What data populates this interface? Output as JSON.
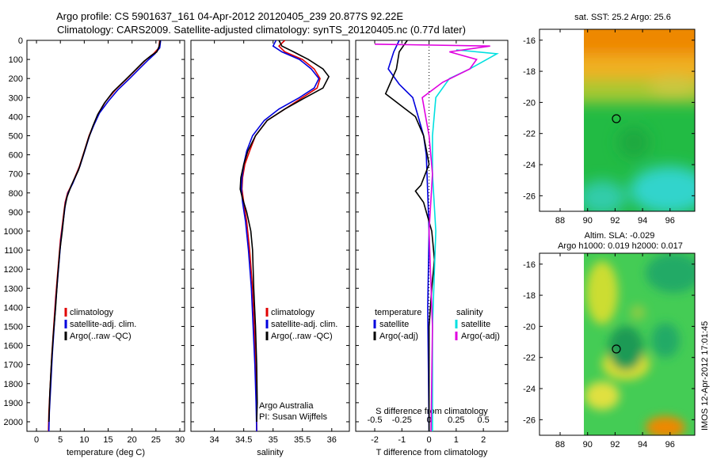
{
  "title": {
    "line1": "Argo profile: CS 5901637_161 04-Apr-2012 20120405_239 20.877S 92.22E",
    "line2": "Climatology: CARS2009. Satellite-adjusted climatology: synTS_20120405.nc (0.77d later)"
  },
  "colors": {
    "climatology": "#e00000",
    "satellite": "#0000dd",
    "argo": "#000000",
    "salinity_sat": "#00e0e0",
    "salinity_argo": "#e000e0"
  },
  "chart_data": [
    {
      "type": "line",
      "panel": "temperature",
      "xlabel": "temperature (deg C)",
      "xlim": [
        -2,
        31
      ],
      "xticks": [
        0,
        5,
        10,
        15,
        20,
        25,
        30
      ],
      "ylim": [
        2050,
        0
      ],
      "yticks": [
        0,
        100,
        200,
        300,
        400,
        500,
        600,
        700,
        800,
        900,
        1000,
        1100,
        1200,
        1300,
        1400,
        1500,
        1600,
        1700,
        1800,
        1900,
        2000
      ],
      "legend": [
        "climatology",
        "satellite-adj. clim.",
        "Argo(..raw -QC)"
      ],
      "series": [
        {
          "name": "climatology",
          "color": "#e00000",
          "points": [
            [
              25.8,
              0
            ],
            [
              25.6,
              40
            ],
            [
              24.5,
              70
            ],
            [
              23,
              100
            ],
            [
              21,
              150
            ],
            [
              19,
              200
            ],
            [
              16.5,
              260
            ],
            [
              14.5,
              320
            ],
            [
              13,
              380
            ],
            [
              12,
              440
            ],
            [
              11,
              500
            ],
            [
              10,
              580
            ],
            [
              9,
              660
            ],
            [
              7.5,
              750
            ],
            [
              6.5,
              800
            ],
            [
              6,
              850
            ],
            [
              5.5,
              950
            ],
            [
              5,
              1050
            ],
            [
              4.5,
              1200
            ],
            [
              4,
              1350
            ],
            [
              3.6,
              1500
            ],
            [
              3.2,
              1650
            ],
            [
              2.9,
              1800
            ],
            [
              2.6,
              1950
            ],
            [
              2.5,
              2050
            ]
          ]
        },
        {
          "name": "satellite-adj. clim.",
          "color": "#0000dd",
          "points": [
            [
              26,
              0
            ],
            [
              25.8,
              40
            ],
            [
              24.8,
              70
            ],
            [
              23.5,
              100
            ],
            [
              21.5,
              150
            ],
            [
              19.5,
              200
            ],
            [
              17,
              260
            ],
            [
              15,
              320
            ],
            [
              13.2,
              380
            ],
            [
              12.1,
              440
            ],
            [
              11.1,
              500
            ],
            [
              10.1,
              580
            ],
            [
              9.1,
              660
            ],
            [
              7.6,
              750
            ],
            [
              6.6,
              800
            ],
            [
              6.1,
              850
            ],
            [
              5.6,
              950
            ],
            [
              5.1,
              1050
            ],
            [
              4.6,
              1200
            ],
            [
              4.1,
              1350
            ],
            [
              3.7,
              1500
            ],
            [
              3.3,
              1650
            ],
            [
              3,
              1800
            ],
            [
              2.7,
              1950
            ],
            [
              2.6,
              2050
            ]
          ]
        },
        {
          "name": "Argo(..raw -QC)",
          "color": "#000000",
          "points": [
            [
              25.9,
              0
            ],
            [
              25.7,
              30
            ],
            [
              25.2,
              60
            ],
            [
              24,
              80
            ],
            [
              22.5,
              110
            ],
            [
              20.5,
              160
            ],
            [
              18.5,
              210
            ],
            [
              16,
              270
            ],
            [
              14.2,
              330
            ],
            [
              12.8,
              390
            ],
            [
              11.8,
              450
            ],
            [
              10.8,
              520
            ],
            [
              9.8,
              600
            ],
            [
              8.8,
              680
            ],
            [
              7.3,
              760
            ],
            [
              6.4,
              820
            ],
            [
              5.9,
              880
            ],
            [
              5.4,
              1000
            ],
            [
              4.9,
              1100
            ],
            [
              4.4,
              1250
            ],
            [
              4,
              1400
            ],
            [
              3.5,
              1550
            ],
            [
              3.1,
              1700
            ],
            [
              2.8,
              1850
            ],
            [
              2.6,
              2000
            ]
          ]
        }
      ]
    },
    {
      "type": "line",
      "panel": "salinity",
      "xlabel": "salinity",
      "xlim": [
        33.6,
        36.3
      ],
      "xticks": [
        34,
        34.5,
        35,
        35.5,
        36
      ],
      "legend": [
        "climatology",
        "satellite-adj. clim.",
        "Argo(..raw -QC)"
      ],
      "annotation": [
        "Argo Australia",
        "PI: Susan Wijffels"
      ],
      "series": [
        {
          "name": "climatology",
          "color": "#e00000",
          "points": [
            [
              35.2,
              0
            ],
            [
              35.1,
              30
            ],
            [
              35.2,
              60
            ],
            [
              35.5,
              100
            ],
            [
              35.7,
              150
            ],
            [
              35.8,
              200
            ],
            [
              35.75,
              250
            ],
            [
              35.5,
              300
            ],
            [
              35.2,
              360
            ],
            [
              34.9,
              420
            ],
            [
              34.7,
              500
            ],
            [
              34.6,
              580
            ],
            [
              34.52,
              650
            ],
            [
              34.48,
              720
            ],
            [
              34.47,
              780
            ],
            [
              34.5,
              850
            ],
            [
              34.55,
              950
            ],
            [
              34.6,
              1100
            ],
            [
              34.65,
              1300
            ],
            [
              34.68,
              1500
            ],
            [
              34.7,
              1700
            ],
            [
              34.72,
              1900
            ],
            [
              34.72,
              2050
            ]
          ]
        },
        {
          "name": "satellite-adj. clim.",
          "color": "#0000dd",
          "points": [
            [
              35.05,
              0
            ],
            [
              35,
              30
            ],
            [
              35.15,
              60
            ],
            [
              35.45,
              100
            ],
            [
              35.65,
              150
            ],
            [
              35.78,
              200
            ],
            [
              35.7,
              250
            ],
            [
              35.45,
              300
            ],
            [
              35.1,
              360
            ],
            [
              34.85,
              420
            ],
            [
              34.65,
              500
            ],
            [
              34.55,
              580
            ],
            [
              34.5,
              650
            ],
            [
              34.47,
              720
            ],
            [
              34.46,
              780
            ],
            [
              34.48,
              850
            ],
            [
              34.53,
              950
            ],
            [
              34.58,
              1100
            ],
            [
              34.63,
              1300
            ],
            [
              34.66,
              1500
            ],
            [
              34.69,
              1700
            ],
            [
              34.71,
              1900
            ],
            [
              34.72,
              2050
            ]
          ]
        },
        {
          "name": "Argo(..raw -QC)",
          "color": "#000000",
          "points": [
            [
              35.1,
              0
            ],
            [
              35.15,
              30
            ],
            [
              35.35,
              60
            ],
            [
              35.6,
              100
            ],
            [
              35.85,
              150
            ],
            [
              35.95,
              190
            ],
            [
              35.85,
              250
            ],
            [
              35.55,
              300
            ],
            [
              35.2,
              360
            ],
            [
              34.9,
              420
            ],
            [
              34.7,
              500
            ],
            [
              34.57,
              580
            ],
            [
              34.5,
              650
            ],
            [
              34.45,
              720
            ],
            [
              34.44,
              780
            ],
            [
              34.48,
              830
            ],
            [
              34.55,
              900
            ],
            [
              34.62,
              1000
            ],
            [
              34.65,
              1100
            ],
            [
              34.67,
              1300
            ],
            [
              34.7,
              1500
            ],
            [
              34.72,
              1700
            ],
            [
              34.73,
              1900
            ],
            [
              34.72,
              2000
            ]
          ]
        }
      ]
    },
    {
      "type": "line",
      "panel": "difference",
      "xlabel": "T difference from climatology",
      "xlabel2": "S difference from climatology",
      "xlim": [
        -2.7,
        2.9
      ],
      "xticks": [
        -2,
        -1,
        0,
        1,
        2
      ],
      "xticks2": [
        -0.5,
        -0.25,
        0,
        0.25,
        0.5
      ],
      "xticks2_labels": [
        "-0.5",
        "-0.25",
        "0",
        "0.25",
        "0.5"
      ],
      "legend_groups": [
        {
          "header": "temperature",
          "items": [
            "satellite",
            "Argo(-adj)"
          ]
        },
        {
          "header": "salinity",
          "items": [
            "satellite",
            "Argo(-adj)"
          ]
        }
      ],
      "series": [
        {
          "name": "satellite",
          "group": "temperature",
          "color": "#0000dd",
          "points": [
            [
              -1.1,
              0
            ],
            [
              -1.3,
              60
            ],
            [
              -1.5,
              150
            ],
            [
              -1.1,
              230
            ],
            [
              -0.6,
              300
            ],
            [
              -0.4,
              400
            ],
            [
              -0.2,
              500
            ],
            [
              -0.1,
              600
            ],
            [
              -0.05,
              800
            ],
            [
              0,
              1000
            ],
            [
              -0.05,
              1400
            ],
            [
              0,
              2050
            ]
          ]
        },
        {
          "name": "Argo(-adj)",
          "group": "temperature",
          "color": "#000000",
          "points": [
            [
              -0.8,
              0
            ],
            [
              -1.1,
              60
            ],
            [
              -1.2,
              150
            ],
            [
              -1.6,
              280
            ],
            [
              -0.5,
              400
            ],
            [
              -0.2,
              500
            ],
            [
              0,
              650
            ],
            [
              -0.3,
              760
            ],
            [
              -0.5,
              790
            ],
            [
              -0.2,
              850
            ],
            [
              0.1,
              1000
            ],
            [
              0.2,
              1150
            ],
            [
              0.1,
              1300
            ],
            [
              0,
              1500
            ],
            [
              0,
              2050
            ]
          ]
        },
        {
          "name": "satellite",
          "group": "salinity",
          "color": "#00e0e0",
          "points": [
            [
              0.4,
              50
            ],
            [
              1.0,
              70
            ],
            [
              0.6,
              150
            ],
            [
              0.3,
              200
            ],
            [
              0.1,
              300
            ],
            [
              0.05,
              500
            ],
            [
              0.05,
              700
            ],
            [
              0.1,
              1000
            ],
            [
              0.05,
              1500
            ],
            [
              0.05,
              2050
            ]
          ]
        },
        {
          "name": "Argo(-adj)",
          "group": "salinity",
          "color": "#e000e0",
          "points": [
            [
              -0.8,
              20
            ],
            [
              0.9,
              30
            ],
            [
              0.3,
              60
            ],
            [
              0.7,
              100
            ],
            [
              0.6,
              150
            ],
            [
              0.2,
              220
            ],
            [
              -0.1,
              300
            ],
            [
              0,
              500
            ],
            [
              0.05,
              700
            ],
            [
              0,
              1000
            ],
            [
              0.05,
              1500
            ],
            [
              0.03,
              2050
            ]
          ]
        }
      ]
    },
    {
      "type": "heatmap",
      "panel": "sst-map",
      "title": "sat. SST: 25.2  Argo: 25.6",
      "xlim": [
        86.5,
        97.8
      ],
      "ylim": [
        -27,
        -15.3
      ],
      "xticks": [
        88,
        90,
        92,
        94,
        96
      ],
      "yticks": [
        -16,
        -18,
        -20,
        -22,
        -24,
        -26
      ],
      "data_extent_x": [
        90,
        97.8
      ],
      "marker": [
        92.22,
        -20.877
      ]
    },
    {
      "type": "heatmap",
      "panel": "sla-map",
      "title": "Altim. SLA: -0.029",
      "subtitle": "Argo h1000: 0.019 h2000: 0.017",
      "xlim": [
        86.5,
        97.8
      ],
      "ylim": [
        -27,
        -15.3
      ],
      "xticks": [
        88,
        90,
        92,
        94,
        96
      ],
      "yticks": [
        -16,
        -18,
        -20,
        -22,
        -24,
        -26
      ],
      "data_extent_x": [
        90,
        97.8
      ],
      "marker": [
        92.22,
        -20.877
      ]
    }
  ],
  "side_label": "IMOS 12-Apr-2012 17:01:45"
}
